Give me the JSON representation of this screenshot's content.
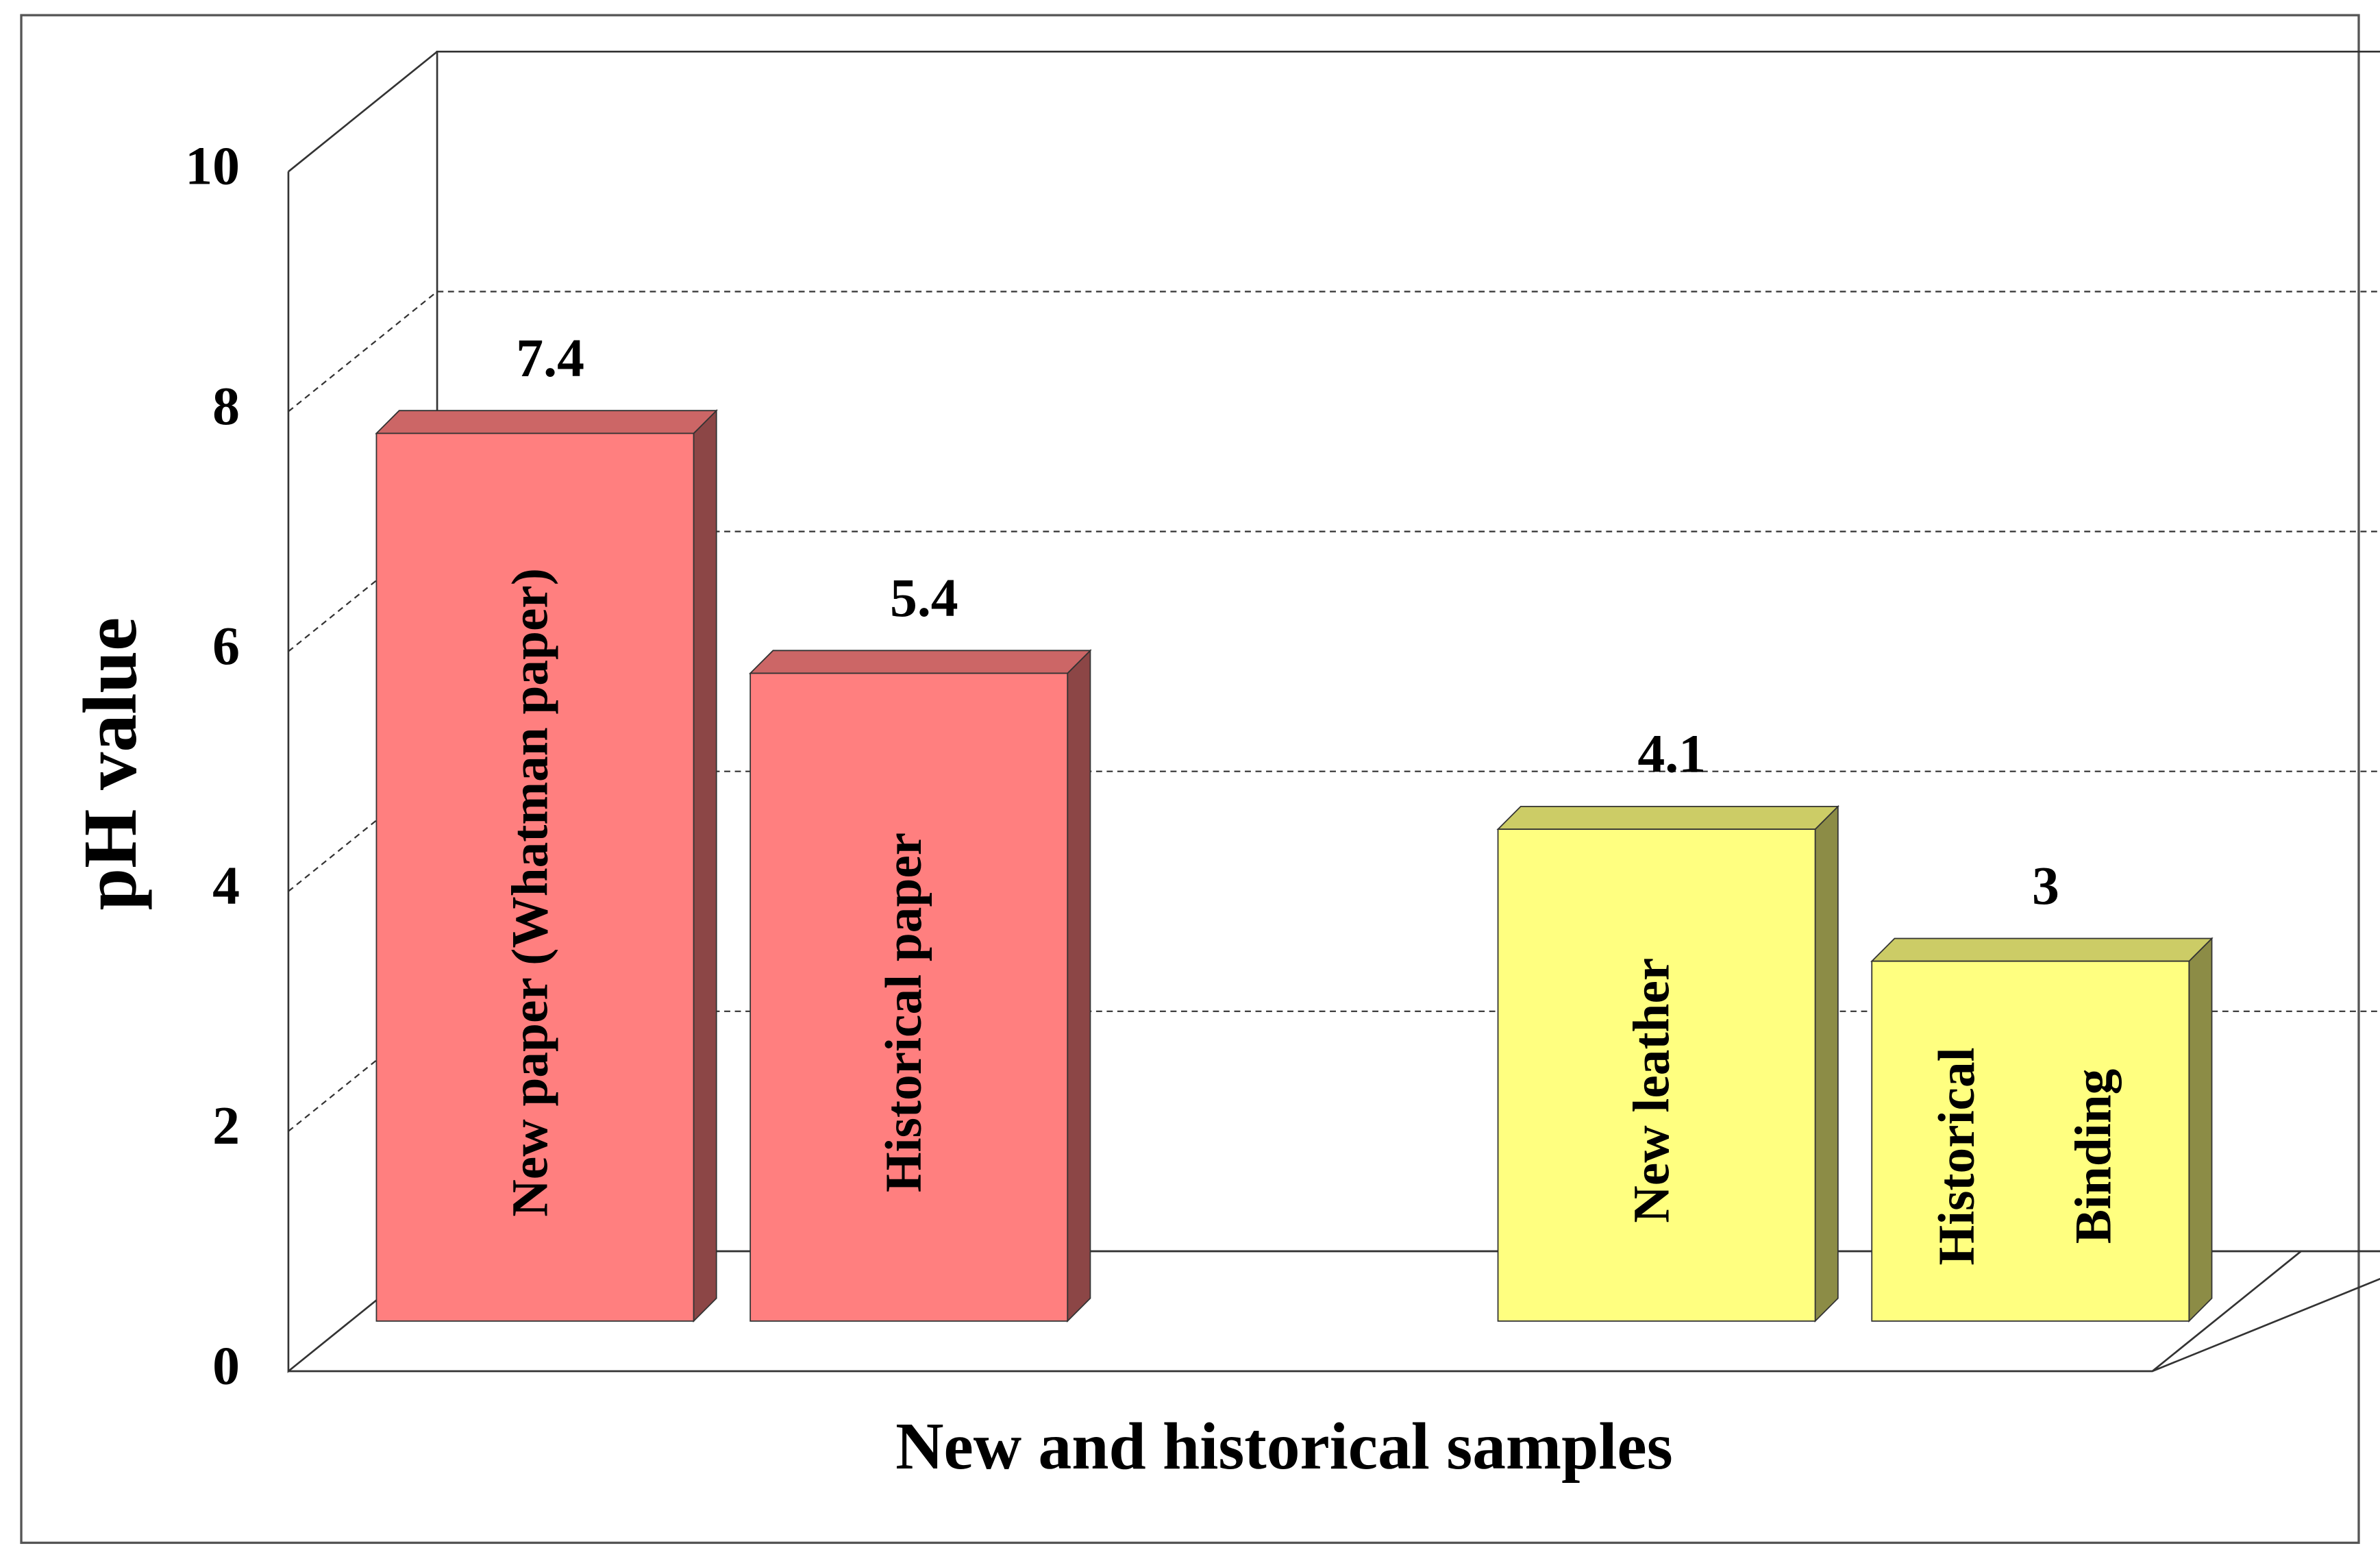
{
  "chart_data": {
    "type": "bar3d",
    "x_label": "New and historical samples",
    "y_label": "pH value",
    "categories": [
      "New paper (Whatman paper)",
      "Historical paper",
      null,
      "New leather",
      "Historical Binding"
    ],
    "values": [
      7.4,
      5.4,
      null,
      4.1,
      3
    ],
    "colors": [
      "#ff7f7f",
      "#ff7f7f",
      null,
      "#ffff80",
      "#ffff80"
    ],
    "ylim": [
      0,
      10
    ],
    "yticks": [
      0,
      2,
      4,
      6,
      8,
      10
    ],
    "grid": true
  }
}
